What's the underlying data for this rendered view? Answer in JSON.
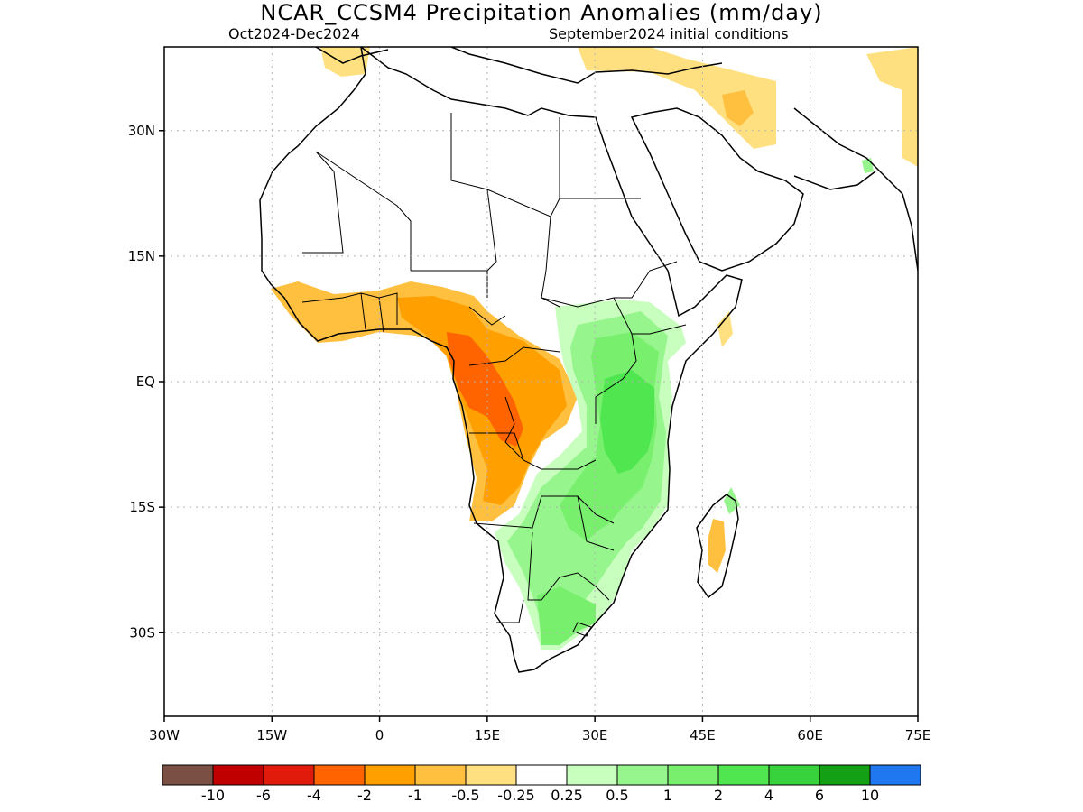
{
  "title": "NCAR_CCSM4 Precipitation Anomalies (mm/day)",
  "subtitle_left": "Oct2024-Dec2024",
  "subtitle_right": "September2024 initial conditions",
  "map": {
    "lon_range": [
      -30,
      75
    ],
    "lat_range": [
      -40,
      40
    ],
    "lon_ticks": [
      {
        "value": -30,
        "label": "30W"
      },
      {
        "value": -15,
        "label": "15W"
      },
      {
        "value": 0,
        "label": "0"
      },
      {
        "value": 15,
        "label": "15E"
      },
      {
        "value": 30,
        "label": "30E"
      },
      {
        "value": 45,
        "label": "45E"
      },
      {
        "value": 60,
        "label": "60E"
      },
      {
        "value": 75,
        "label": "75E"
      }
    ],
    "lat_ticks": [
      {
        "value": 30,
        "label": "30N"
      },
      {
        "value": 15,
        "label": "15N"
      },
      {
        "value": 0,
        "label": "EQ"
      },
      {
        "value": -15,
        "label": "15S"
      },
      {
        "value": -30,
        "label": "30S"
      }
    ],
    "grid": "dotted"
  },
  "colorbar": {
    "colors": [
      "#7a5045",
      "#c00000",
      "#e01b0b",
      "#ff6400",
      "#ffa000",
      "#ffc040",
      "#ffe080",
      "#ffffff",
      "#c8ffbe",
      "#96f58c",
      "#78f06e",
      "#50e650",
      "#37d23c",
      "#14a014",
      "#2078f0"
    ],
    "labels": [
      "-10",
      "-6",
      "-4",
      "-2",
      "-1",
      "-0.5",
      "-0.25",
      "0.25",
      "0.5",
      "1",
      "2",
      "4",
      "6",
      "10"
    ]
  },
  "legend": {
    "dry": "#ffa000",
    "wet": "#50e650"
  }
}
